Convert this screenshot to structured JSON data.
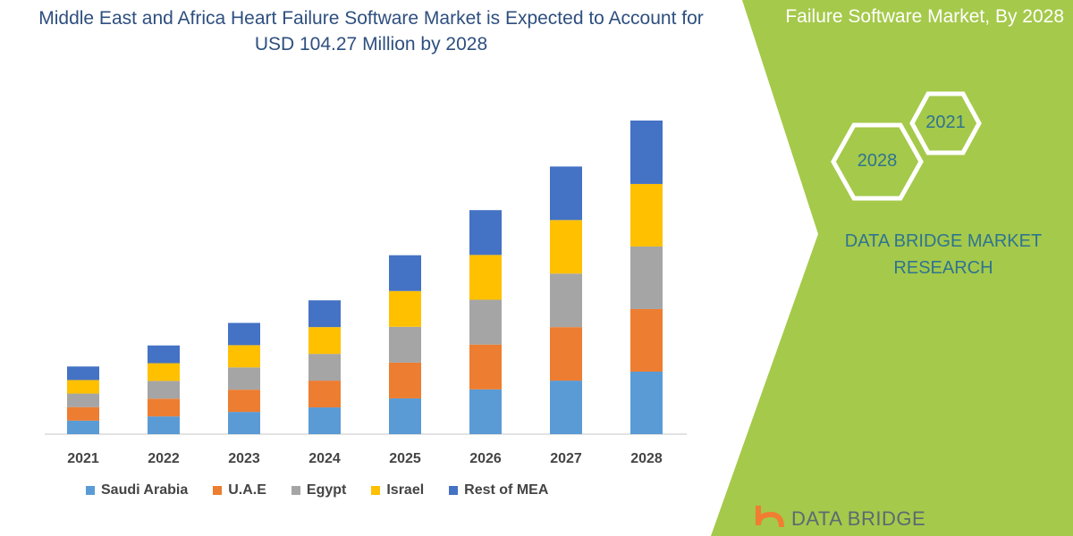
{
  "title": "Middle East and Africa Heart Failure Software Market is Expected to Account for USD 104.27 Million by 2028",
  "side_panel": {
    "title": "Failure Software Market, By 2028",
    "hex_labels": [
      "2028",
      "2021"
    ],
    "brand": "DATA BRIDGE MARKET RESEARCH",
    "logo_text": "DATA BRIDGE",
    "panel_color": "#a5c94a"
  },
  "chart_data": {
    "type": "bar",
    "stacked": true,
    "title": "Middle East and Africa Heart Failure Software Market is Expected to Account for USD 104.27 Million by 2028",
    "xlabel": "",
    "ylabel": "",
    "categories": [
      "2021",
      "2022",
      "2023",
      "2024",
      "2025",
      "2026",
      "2027",
      "2028"
    ],
    "series": [
      {
        "name": "Saudi Arabia",
        "color": "#5b9bd5",
        "values": [
          4.5,
          5.9,
          7.4,
          8.9,
          11.9,
          14.9,
          17.8,
          20.8
        ]
      },
      {
        "name": "U.A.E",
        "color": "#ed7d31",
        "values": [
          4.5,
          5.9,
          7.4,
          8.9,
          11.9,
          14.9,
          17.8,
          20.8
        ]
      },
      {
        "name": "Egypt",
        "color": "#a5a5a5",
        "values": [
          4.5,
          5.9,
          7.4,
          8.9,
          11.9,
          14.9,
          17.8,
          20.8
        ]
      },
      {
        "name": "Israel",
        "color": "#ffc000",
        "values": [
          4.5,
          5.9,
          7.4,
          8.9,
          11.9,
          14.9,
          17.8,
          20.8
        ]
      },
      {
        "name": "Rest of MEA",
        "color": "#4472c4",
        "values": [
          4.5,
          5.9,
          7.4,
          8.9,
          11.9,
          14.9,
          17.8,
          21.1
        ]
      }
    ],
    "ylim": [
      0,
      104.27
    ],
    "grid": false,
    "legend": "bottom"
  }
}
